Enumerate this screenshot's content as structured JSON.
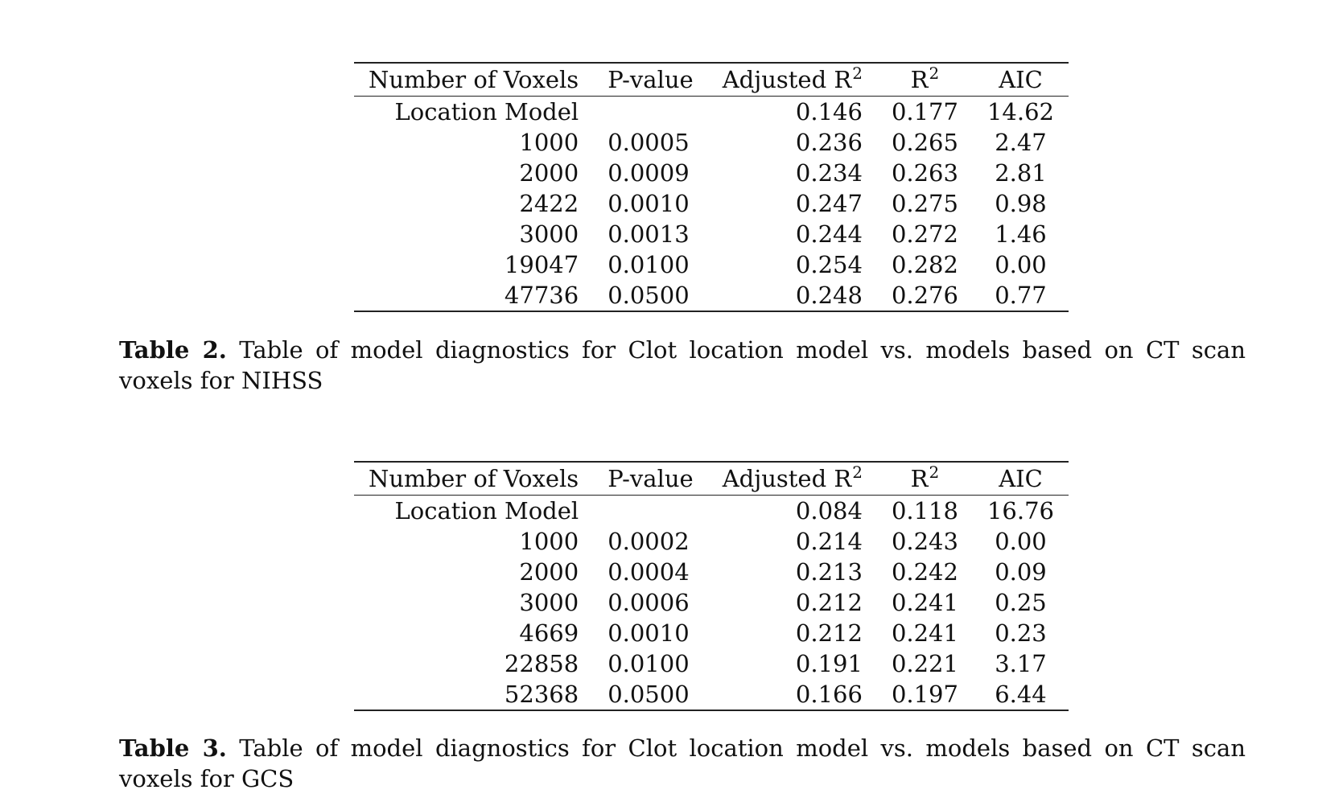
{
  "tables": [
    {
      "headers": {
        "voxels": "Number of Voxels",
        "pvalue": "P-value",
        "adj_r2": "Adjusted R",
        "r2": "R",
        "sq": "2",
        "aic": "AIC"
      },
      "rows": [
        {
          "voxels": "Location Model",
          "pvalue": "",
          "adj_r2": "0.146",
          "r2": "0.177",
          "aic": "14.62"
        },
        {
          "voxels": "1000",
          "pvalue": "0.0005",
          "adj_r2": "0.236",
          "r2": "0.265",
          "aic": "2.47"
        },
        {
          "voxels": "2000",
          "pvalue": "0.0009",
          "adj_r2": "0.234",
          "r2": "0.263",
          "aic": "2.81"
        },
        {
          "voxels": "2422",
          "pvalue": "0.0010",
          "adj_r2": "0.247",
          "r2": "0.275",
          "aic": "0.98"
        },
        {
          "voxels": "3000",
          "pvalue": "0.0013",
          "adj_r2": "0.244",
          "r2": "0.272",
          "aic": "1.46"
        },
        {
          "voxels": "19047",
          "pvalue": "0.0100",
          "adj_r2": "0.254",
          "r2": "0.282",
          "aic": "0.00"
        },
        {
          "voxels": "47736",
          "pvalue": "0.0500",
          "adj_r2": "0.248",
          "r2": "0.276",
          "aic": "0.77"
        }
      ],
      "caption_label": "Table 2.",
      "caption_text": "Table of model diagnostics for Clot location model vs. models based on CT scan voxels for NIHSS"
    },
    {
      "headers": {
        "voxels": "Number of Voxels",
        "pvalue": "P-value",
        "adj_r2": "Adjusted R",
        "r2": "R",
        "sq": "2",
        "aic": "AIC"
      },
      "rows": [
        {
          "voxels": "Location Model",
          "pvalue": "",
          "adj_r2": "0.084",
          "r2": "0.118",
          "aic": "16.76"
        },
        {
          "voxels": "1000",
          "pvalue": "0.0002",
          "adj_r2": "0.214",
          "r2": "0.243",
          "aic": "0.00"
        },
        {
          "voxels": "2000",
          "pvalue": "0.0004",
          "adj_r2": "0.213",
          "r2": "0.242",
          "aic": "0.09"
        },
        {
          "voxels": "3000",
          "pvalue": "0.0006",
          "adj_r2": "0.212",
          "r2": "0.241",
          "aic": "0.25"
        },
        {
          "voxels": "4669",
          "pvalue": "0.0010",
          "adj_r2": "0.212",
          "r2": "0.241",
          "aic": "0.23"
        },
        {
          "voxels": "22858",
          "pvalue": "0.0100",
          "adj_r2": "0.191",
          "r2": "0.221",
          "aic": "3.17"
        },
        {
          "voxels": "52368",
          "pvalue": "0.0500",
          "adj_r2": "0.166",
          "r2": "0.197",
          "aic": "6.44"
        }
      ],
      "caption_label": "Table 3.",
      "caption_text": "Table of model diagnostics for Clot location model vs. models based on CT scan voxels for GCS"
    }
  ]
}
